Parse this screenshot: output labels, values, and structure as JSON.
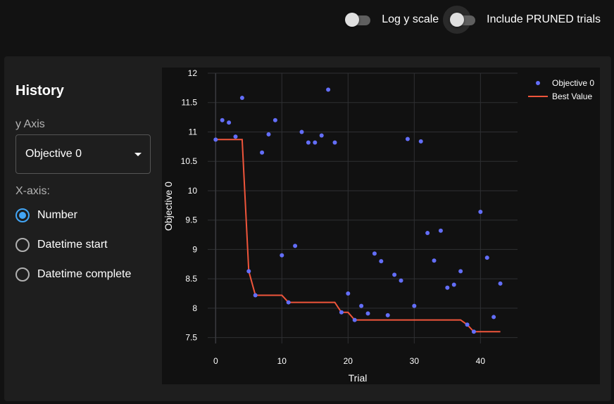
{
  "toolbar": {
    "log_y_label": "Log y scale",
    "pruned_label": "Include PRUNED trials"
  },
  "panel": {
    "title": "History",
    "y_axis_label": "y Axis",
    "y_axis_value": "Objective 0",
    "x_axis_label": "X-axis:",
    "x_axis_options": [
      {
        "label": "Number",
        "checked": true
      },
      {
        "label": "Datetime start",
        "checked": false
      },
      {
        "label": "Datetime complete",
        "checked": false
      }
    ]
  },
  "chart_data": {
    "type": "scatter",
    "xlabel": "Trial",
    "ylabel": "Objective 0",
    "xlim": [
      -1.2,
      45.6
    ],
    "ylim": [
      7.4,
      12
    ],
    "xticks": [
      0,
      10,
      20,
      30,
      40
    ],
    "yticks": [
      7.5,
      8,
      8.5,
      9,
      9.5,
      10,
      10.5,
      11,
      11.5,
      12
    ],
    "ytick_labels": [
      "7.5",
      "8",
      "8.5",
      "9",
      "9.5",
      "10",
      "10.5",
      "11",
      "11.5",
      "12"
    ],
    "grid": true,
    "legend_position": "top-right",
    "colors": {
      "objective": "#636efa",
      "best": "#ef553b"
    },
    "series": [
      {
        "name": "Objective 0",
        "kind": "markers",
        "x": [
          0,
          1,
          2,
          3,
          4,
          5,
          6,
          7,
          8,
          9,
          10,
          11,
          12,
          13,
          14,
          15,
          16,
          17,
          18,
          19,
          20,
          21,
          22,
          23,
          24,
          25,
          26,
          27,
          28,
          29,
          30,
          31,
          32,
          33,
          34,
          35,
          36,
          37,
          38,
          39,
          40,
          41,
          42,
          43
        ],
        "y": [
          10.87,
          11.2,
          11.16,
          10.92,
          11.58,
          8.63,
          8.22,
          10.65,
          10.96,
          11.2,
          8.9,
          8.1,
          9.06,
          11,
          10.82,
          10.82,
          10.94,
          11.72,
          10.82,
          7.93,
          8.25,
          7.8,
          8.04,
          7.91,
          8.93,
          8.8,
          7.88,
          8.57,
          8.47,
          10.88,
          8.04,
          10.84,
          9.28,
          8.81,
          9.32,
          8.35,
          8.4,
          8.63,
          7.72,
          7.6,
          9.64,
          8.86,
          7.85,
          8.42
        ]
      },
      {
        "name": "Best Value",
        "kind": "line",
        "x": [
          0,
          1,
          2,
          3,
          4,
          5,
          6,
          7,
          8,
          9,
          10,
          11,
          12,
          13,
          14,
          15,
          16,
          17,
          18,
          19,
          20,
          21,
          22,
          23,
          24,
          25,
          26,
          27,
          28,
          29,
          30,
          31,
          32,
          33,
          34,
          35,
          36,
          37,
          38,
          39,
          40,
          41,
          42,
          43
        ],
        "y": [
          10.87,
          10.87,
          10.87,
          10.87,
          10.87,
          8.63,
          8.22,
          8.22,
          8.22,
          8.22,
          8.22,
          8.1,
          8.1,
          8.1,
          8.1,
          8.1,
          8.1,
          8.1,
          8.1,
          7.93,
          7.93,
          7.8,
          7.8,
          7.8,
          7.8,
          7.8,
          7.8,
          7.8,
          7.8,
          7.8,
          7.8,
          7.8,
          7.8,
          7.8,
          7.8,
          7.8,
          7.8,
          7.8,
          7.72,
          7.6,
          7.6,
          7.6,
          7.6,
          7.6
        ]
      }
    ]
  }
}
